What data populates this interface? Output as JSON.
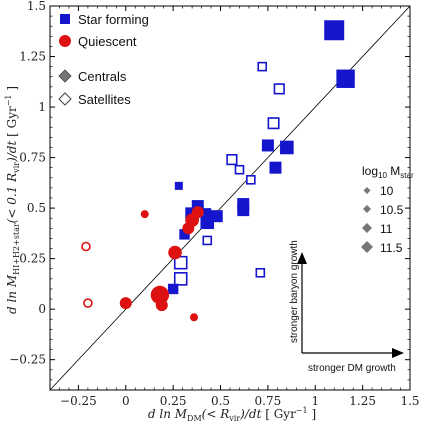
{
  "chart_data": {
    "type": "scatter",
    "title": "",
    "xlabel": "d ln M_DM(< R_vir)/dt [ Gyr^-1 ]",
    "ylabel": "d ln M_HI+H2+star(< 0.1 R_vir)/dt [ Gyr^-1 ]",
    "xlim": [
      -0.4,
      1.5
    ],
    "ylim": [
      -0.4,
      1.5
    ],
    "xticks": [
      "-0.25",
      "0",
      "0.25",
      "0.5",
      "0.75",
      "1",
      "1.25",
      "1.5"
    ],
    "yticks": [
      "-0.25",
      "0",
      "0.25",
      "0.5",
      "0.75",
      "1",
      "1.25",
      "1.5"
    ],
    "reference_line": "y = x",
    "grid": false,
    "legend": {
      "placement": "top-left",
      "items": [
        "Star forming",
        "Quiescent",
        "Centrals",
        "Satellites"
      ]
    },
    "mass_legend": {
      "title": "log10 M_star",
      "placement": "right",
      "items": [
        {
          "label": "10",
          "value": 10
        },
        {
          "label": "10.5",
          "value": 10.5
        },
        {
          "label": "11",
          "value": 11
        },
        {
          "label": "11.5",
          "value": 11.5
        }
      ]
    },
    "annotations": {
      "vertical": "stronger baryon growth",
      "horizontal": "stronger DM growth"
    },
    "colors": {
      "star_forming": "#1515cc",
      "quiescent": "#dd1111"
    },
    "series": [
      {
        "name": "Star forming",
        "marker": "square",
        "points": [
          {
            "x": 1.1,
            "y": 1.38,
            "m": 11.5,
            "central": true
          },
          {
            "x": 1.16,
            "y": 1.14,
            "m": 11.3,
            "central": true
          },
          {
            "x": 0.72,
            "y": 1.2,
            "m": 10.0,
            "central": false
          },
          {
            "x": 0.81,
            "y": 1.09,
            "m": 10.2,
            "central": false
          },
          {
            "x": 0.78,
            "y": 0.92,
            "m": 10.3,
            "central": false
          },
          {
            "x": 0.75,
            "y": 0.81,
            "m": 10.5,
            "central": true
          },
          {
            "x": 0.85,
            "y": 0.8,
            "m": 10.7,
            "central": true
          },
          {
            "x": 0.79,
            "y": 0.7,
            "m": 10.5,
            "central": true
          },
          {
            "x": 0.56,
            "y": 0.74,
            "m": 10.2,
            "central": false
          },
          {
            "x": 0.6,
            "y": 0.69,
            "m": 10.0,
            "central": false
          },
          {
            "x": 0.66,
            "y": 0.64,
            "m": 10.0,
            "central": false
          },
          {
            "x": 0.28,
            "y": 0.61,
            "m": 10.0,
            "central": true
          },
          {
            "x": 0.38,
            "y": 0.51,
            "m": 10.5,
            "central": true
          },
          {
            "x": 0.35,
            "y": 0.47,
            "m": 10.7,
            "central": true
          },
          {
            "x": 0.43,
            "y": 0.48,
            "m": 10.0,
            "central": true
          },
          {
            "x": 0.48,
            "y": 0.46,
            "m": 10.5,
            "central": true
          },
          {
            "x": 0.62,
            "y": 0.52,
            "m": 10.5,
            "central": true
          },
          {
            "x": 0.62,
            "y": 0.49,
            "m": 10.5,
            "central": true
          },
          {
            "x": 0.31,
            "y": 0.37,
            "m": 10.3,
            "central": true
          },
          {
            "x": 0.43,
            "y": 0.43,
            "m": 10.7,
            "central": true
          },
          {
            "x": 0.43,
            "y": 0.34,
            "m": 10.0,
            "central": false
          },
          {
            "x": 0.29,
            "y": 0.23,
            "m": 10.5,
            "central": false
          },
          {
            "x": 0.29,
            "y": 0.15,
            "m": 10.5,
            "central": false
          },
          {
            "x": 0.25,
            "y": 0.1,
            "m": 10.3,
            "central": true
          },
          {
            "x": 0.71,
            "y": 0.18,
            "m": 10.0,
            "central": false
          }
        ]
      },
      {
        "name": "Quiescent",
        "marker": "circle",
        "points": [
          {
            "x": 0.1,
            "y": 0.47,
            "m": 10.0,
            "central": true
          },
          {
            "x": 0.38,
            "y": 0.48,
            "m": 10.5,
            "central": true
          },
          {
            "x": 0.35,
            "y": 0.44,
            "m": 10.7,
            "central": true
          },
          {
            "x": 0.33,
            "y": 0.4,
            "m": 10.5,
            "central": true
          },
          {
            "x": 0.26,
            "y": 0.28,
            "m": 10.7,
            "central": true
          },
          {
            "x": -0.21,
            "y": 0.31,
            "m": 10.0,
            "central": false
          },
          {
            "x": 0.18,
            "y": 0.07,
            "m": 11.3,
            "central": true
          },
          {
            "x": -0.2,
            "y": 0.03,
            "m": 10.0,
            "central": false
          },
          {
            "x": 0.0,
            "y": 0.03,
            "m": 10.5,
            "central": true
          },
          {
            "x": 0.19,
            "y": 0.02,
            "m": 10.5,
            "central": true
          },
          {
            "x": 0.36,
            "y": -0.04,
            "m": 10.0,
            "central": true
          }
        ]
      }
    ]
  }
}
